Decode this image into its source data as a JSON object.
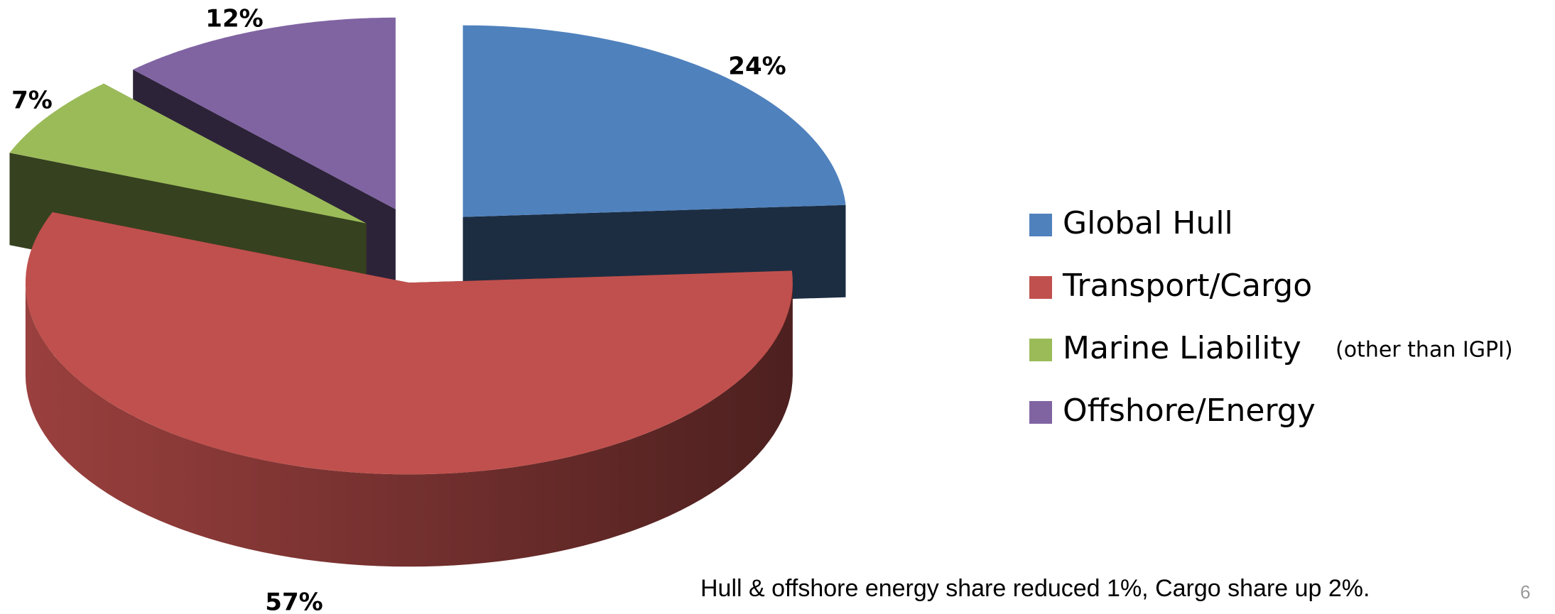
{
  "chart_data": {
    "type": "pie3d",
    "categories": [
      "Global Hull",
      "Transport/Cargo",
      "Marine Liability",
      "Offshore/Energy"
    ],
    "values": [
      24,
      57,
      7,
      12
    ],
    "value_labels": [
      "24%",
      "57%",
      "7%",
      "12%"
    ],
    "colors": [
      "#4f81bd",
      "#c0504d",
      "#9bbb59",
      "#8064a2"
    ],
    "legend": "right",
    "legend_note": "(other than IGPI)",
    "footnote": "Hull & offshore energy share reduced 1%, Cargo share up 2%.",
    "page_number": "6"
  }
}
